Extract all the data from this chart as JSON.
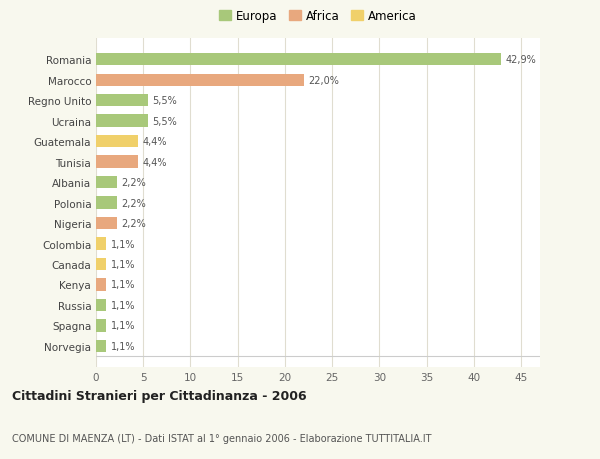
{
  "countries": [
    "Romania",
    "Marocco",
    "Regno Unito",
    "Ucraina",
    "Guatemala",
    "Tunisia",
    "Albania",
    "Polonia",
    "Nigeria",
    "Colombia",
    "Canada",
    "Kenya",
    "Russia",
    "Spagna",
    "Norvegia"
  ],
  "values": [
    42.9,
    22.0,
    5.5,
    5.5,
    4.4,
    4.4,
    2.2,
    2.2,
    2.2,
    1.1,
    1.1,
    1.1,
    1.1,
    1.1,
    1.1
  ],
  "labels": [
    "42,9%",
    "22,0%",
    "5,5%",
    "5,5%",
    "4,4%",
    "4,4%",
    "2,2%",
    "2,2%",
    "2,2%",
    "1,1%",
    "1,1%",
    "1,1%",
    "1,1%",
    "1,1%",
    "1,1%"
  ],
  "continents": [
    "Europa",
    "Africa",
    "Europa",
    "Europa",
    "America",
    "Africa",
    "Europa",
    "Europa",
    "Africa",
    "America",
    "America",
    "Africa",
    "Europa",
    "Europa",
    "Europa"
  ],
  "colors": {
    "Europa": "#a8c87a",
    "Africa": "#e8a87e",
    "America": "#f0d06a"
  },
  "xlim": [
    0,
    47
  ],
  "xticks": [
    0,
    5,
    10,
    15,
    20,
    25,
    30,
    35,
    40,
    45
  ],
  "title": "Cittadini Stranieri per Cittadinanza - 2006",
  "subtitle": "COMUNE DI MAENZA (LT) - Dati ISTAT al 1° gennaio 2006 - Elaborazione TUTTITALIA.IT",
  "background_color": "#f8f8ee",
  "plot_background": "#ffffff",
  "grid_color": "#e0ddd0"
}
